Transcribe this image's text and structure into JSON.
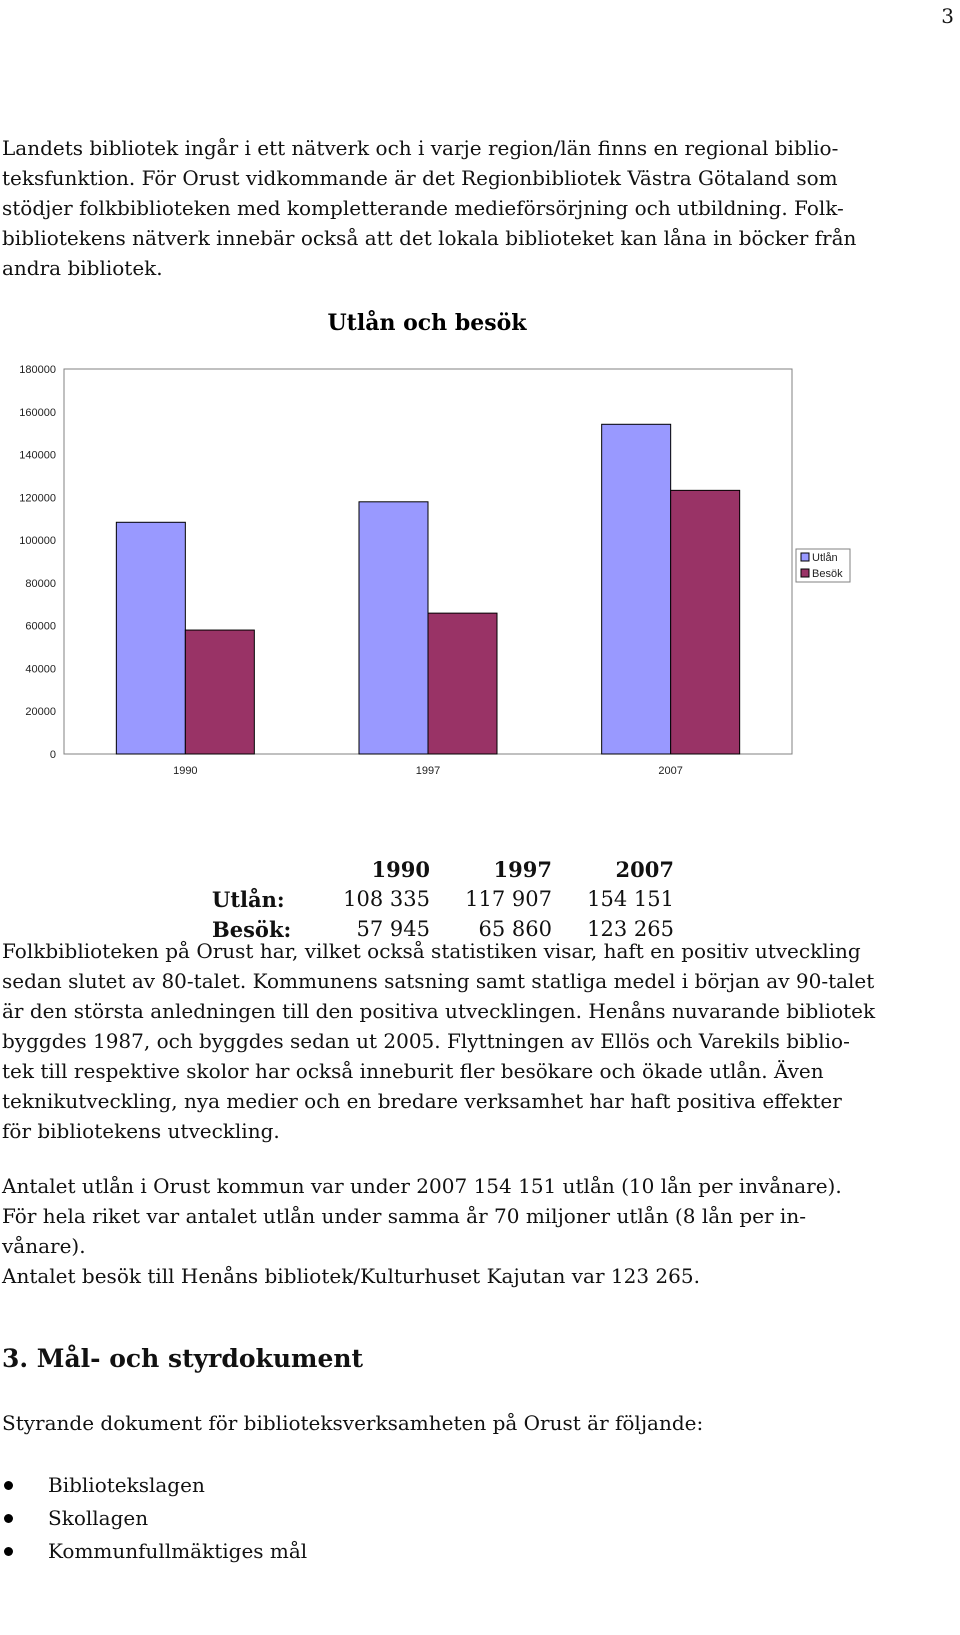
{
  "page_number": "3",
  "paragraph1": [
    "Landets bibliotek ingår i ett nätverk och i varje region/län finns en regional biblio-",
    "teksfunktion. För Orust vidkommande är det Regionbibliotek Västra Götaland som",
    "stödjer folkbiblioteken med kompletterande medieförsörjning och utbildning. Folk-",
    "bibliotekens nätverk innebär också att det lokala biblioteket kan låna in böcker från",
    "andra bibliotek."
  ],
  "chart_data": {
    "type": "bar",
    "title": "Utlån och besök",
    "categories": [
      "1990",
      "1997",
      "2007"
    ],
    "series": [
      {
        "name": "Utlån",
        "values": [
          108335,
          117907,
          154151
        ],
        "color": "#9999ff"
      },
      {
        "name": "Besök",
        "values": [
          57945,
          65860,
          123265
        ],
        "color": "#993366"
      }
    ],
    "ylim": [
      0,
      180000
    ],
    "yticks": [
      "0",
      "20000",
      "40000",
      "60000",
      "80000",
      "100000",
      "120000",
      "140000",
      "160000",
      "180000"
    ],
    "grid": false,
    "legend": "right"
  },
  "table": {
    "years": [
      "1990",
      "1997",
      "2007"
    ],
    "rows": [
      {
        "label": "Utlån:",
        "values": [
          "108 335",
          "117 907",
          "154 151"
        ]
      },
      {
        "label": "Besök:",
        "values": [
          "57 945",
          "65 860",
          "123 265"
        ]
      }
    ]
  },
  "paragraph2": [
    "Folkbiblioteken på Orust har, vilket också statistiken visar, haft en positiv utveckling",
    "sedan slutet av 80-talet. Kommunens satsning samt statliga medel i början av 90-talet",
    "är den största anledningen till den positiva utvecklingen. Henåns nuvarande bibliotek",
    "byggdes 1987, och byggdes sedan ut 2005. Flyttningen av Ellös och Varekils biblio-",
    "tek till respektive skolor har också inneburit fler besökare och ökade utlån. Även",
    "teknikutveckling, nya medier och en bredare verksamhet har haft positiva effekter",
    "för bibliotekens utveckling."
  ],
  "paragraph3": [
    "Antalet utlån i Orust kommun var under 2007 154 151 utlån (10 lån per invånare).",
    "För hela riket var antalet utlån under samma år 70 miljoner utlån (8 lån per in-",
    "vånare).",
    "Antalet besök till Henåns bibliotek/Kulturhuset Kajutan var 123 265."
  ],
  "heading": "3.  Mål- och styrdokument",
  "paragraph4": [
    "Styrande dokument för biblioteksverksamheten på Orust är följande:"
  ],
  "bullets": [
    "Bibliotekslagen",
    "Skollagen",
    "Kommunfullmäktiges mål"
  ]
}
